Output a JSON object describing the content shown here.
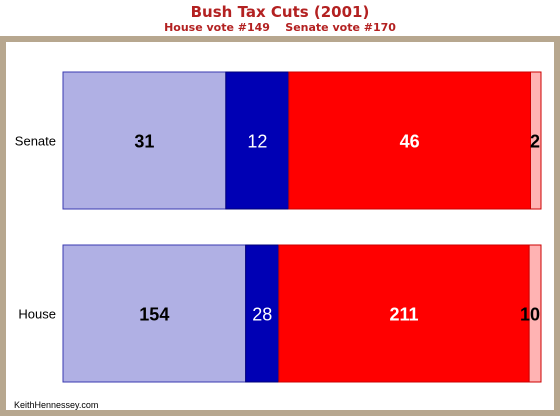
{
  "header": {
    "title": "Bush Tax Cuts (2001)",
    "subtitle_house": "House vote #149",
    "subtitle_senate": "Senate vote #170"
  },
  "footer": {
    "credit": "KeithHennessey.com"
  },
  "colors": {
    "frame": "#b7a78f",
    "title": "#b32121",
    "segments": [
      "#b0b0e4",
      "#0000b4",
      "#ff0000",
      "#ffb3b3"
    ],
    "labels": [
      "#000000",
      "#ffffff",
      "#ffffff",
      "#000000"
    ]
  },
  "chart_data": {
    "type": "bar",
    "orientation": "horizontal",
    "stacked": true,
    "percent_stacked": true,
    "categories": [
      "Senate",
      "House"
    ],
    "series": [
      {
        "values": [
          31,
          154
        ]
      },
      {
        "values": [
          12,
          28
        ]
      },
      {
        "values": [
          46,
          211
        ]
      },
      {
        "values": [
          2,
          10
        ]
      }
    ],
    "grid": false,
    "legend": "none"
  }
}
